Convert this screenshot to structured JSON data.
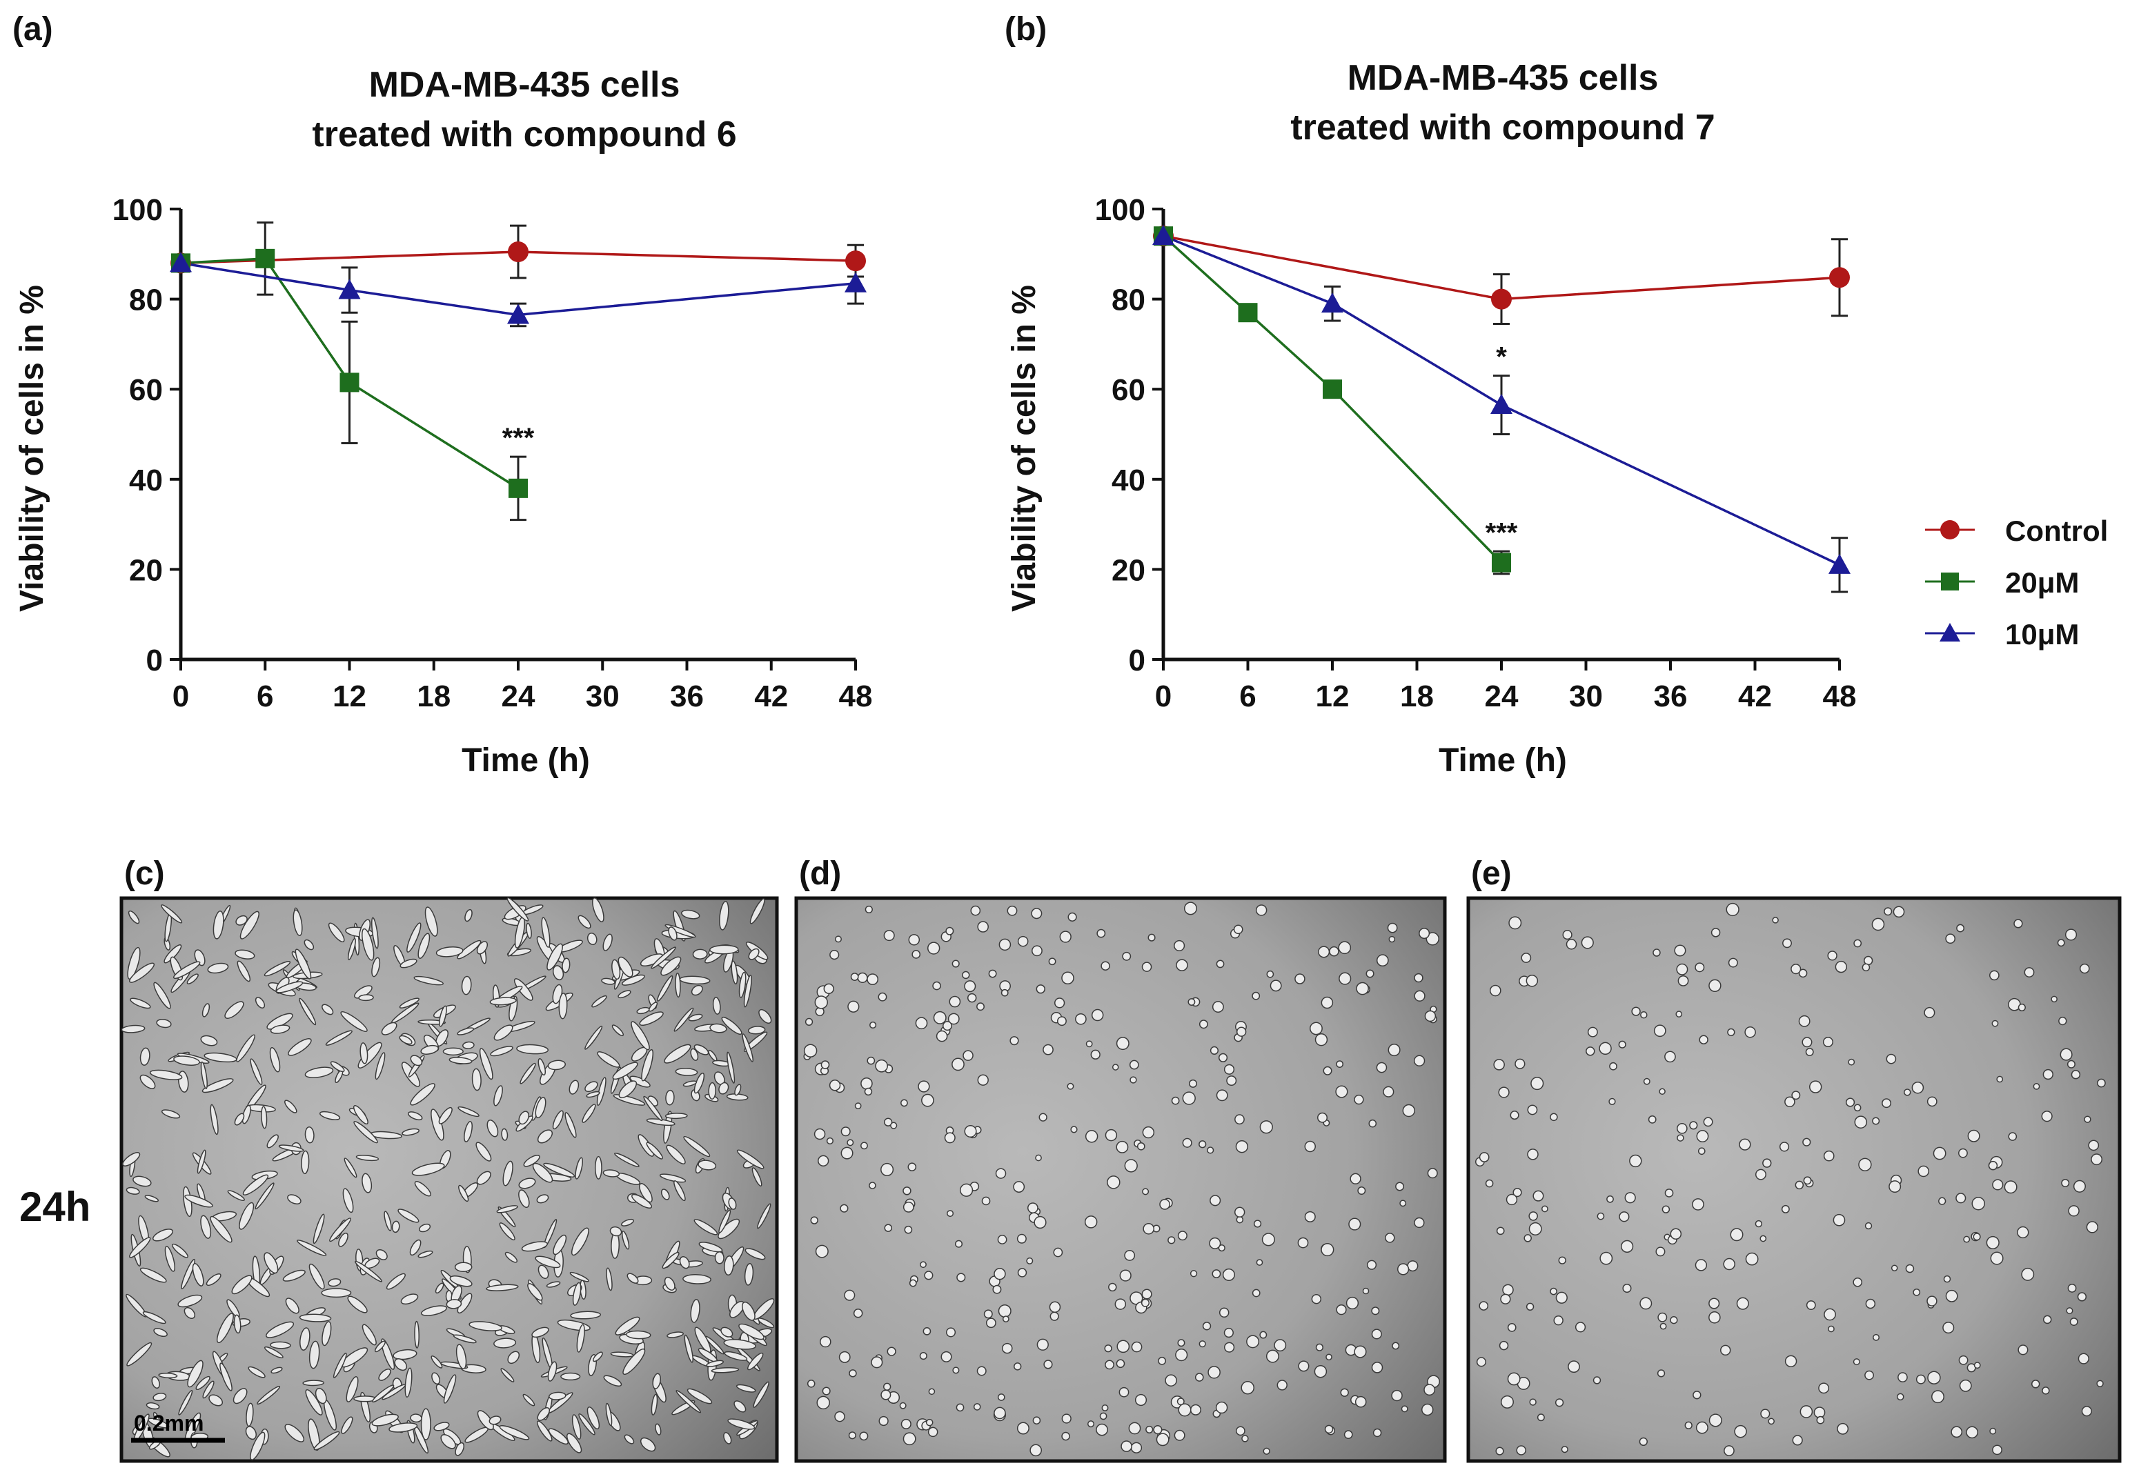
{
  "colors": {
    "control": "#b01818",
    "c20": "#1e6e1e",
    "c10": "#1c1c96",
    "axis": "#111111"
  },
  "chart_data": [
    {
      "panel": "(a)",
      "type": "line",
      "title": [
        "MDA-MB-435 cells",
        "treated with compound 6"
      ],
      "xlabel": "Time (h)",
      "ylabel": "Viability of cells in %",
      "xlim": [
        0,
        48
      ],
      "ylim": [
        0,
        100
      ],
      "xticks": [
        0,
        6,
        12,
        18,
        24,
        30,
        36,
        42,
        48
      ],
      "yticks": [
        0,
        20,
        40,
        60,
        80,
        100
      ],
      "series": [
        {
          "name": "Control",
          "marker": "circle",
          "color": "#b01818",
          "points": [
            {
              "x": 0,
              "y": 88,
              "err": 0
            },
            {
              "x": 24,
              "y": 90.5,
              "err": 5.8
            },
            {
              "x": 48,
              "y": 88.5,
              "err": 3.5
            }
          ]
        },
        {
          "name": "20μM",
          "marker": "square",
          "color": "#1e6e1e",
          "points": [
            {
              "x": 0,
              "y": 88,
              "err": 0
            },
            {
              "x": 6,
              "y": 89,
              "err": 8
            },
            {
              "x": 12,
              "y": 61.5,
              "err": 13.5
            },
            {
              "x": 24,
              "y": 38,
              "err": 7
            }
          ]
        },
        {
          "name": "10μM",
          "marker": "triangle",
          "color": "#1c1c96",
          "points": [
            {
              "x": 0,
              "y": 88,
              "err": 0
            },
            {
              "x": 12,
              "y": 82,
              "err": 5
            },
            {
              "x": 24,
              "y": 76.5,
              "err": 2.5
            },
            {
              "x": 48,
              "y": 83.5,
              "err": 4.5
            }
          ]
        }
      ],
      "annotations": [
        {
          "x": 24,
          "y": 45,
          "text": "***"
        }
      ]
    },
    {
      "panel": "(b)",
      "type": "line",
      "title": [
        "MDA-MB-435 cells",
        "treated with compound 7"
      ],
      "xlabel": "Time (h)",
      "ylabel": "Viability of cells in %",
      "xlim": [
        0,
        48
      ],
      "ylim": [
        0,
        100
      ],
      "xticks": [
        0,
        6,
        12,
        18,
        24,
        30,
        36,
        42,
        48
      ],
      "yticks": [
        0,
        20,
        40,
        60,
        80,
        100
      ],
      "series": [
        {
          "name": "Control",
          "marker": "circle",
          "color": "#b01818",
          "points": [
            {
              "x": 0,
              "y": 94,
              "err": 0
            },
            {
              "x": 24,
              "y": 80,
              "err": 5.5
            },
            {
              "x": 48,
              "y": 84.8,
              "err": 8.5
            }
          ]
        },
        {
          "name": "20μM",
          "marker": "square",
          "color": "#1e6e1e",
          "points": [
            {
              "x": 0,
              "y": 94,
              "err": 0
            },
            {
              "x": 6,
              "y": 77,
              "err": 0
            },
            {
              "x": 12,
              "y": 60,
              "err": 0
            },
            {
              "x": 24,
              "y": 21.5,
              "err": 2.5
            }
          ]
        },
        {
          "name": "10μM",
          "marker": "triangle",
          "color": "#1c1c96",
          "points": [
            {
              "x": 0,
              "y": 94,
              "err": 0
            },
            {
              "x": 12,
              "y": 79,
              "err": 3.8
            },
            {
              "x": 24,
              "y": 56.5,
              "err": 6.5
            },
            {
              "x": 48,
              "y": 21,
              "err": 6
            }
          ]
        }
      ],
      "annotations": [
        {
          "x": 24,
          "y": 63,
          "text": "*"
        },
        {
          "x": 24,
          "y": 24,
          "text": "***"
        }
      ]
    }
  ],
  "legend": {
    "placement": "right",
    "entries": [
      {
        "label": "Control",
        "marker": "circle",
        "color": "#b01818"
      },
      {
        "label": "20μM",
        "marker": "square",
        "color": "#1e6e1e"
      },
      {
        "label": "10μM",
        "marker": "triangle",
        "color": "#1c1c96"
      }
    ]
  },
  "micrographs": {
    "row_label": "24h",
    "scale_bar_label": "0.2mm",
    "panels": [
      {
        "label": "(c)",
        "density": "high",
        "morphology": "elongated"
      },
      {
        "label": "(d)",
        "density": "medium",
        "morphology": "round"
      },
      {
        "label": "(e)",
        "density": "low",
        "morphology": "round"
      }
    ]
  }
}
